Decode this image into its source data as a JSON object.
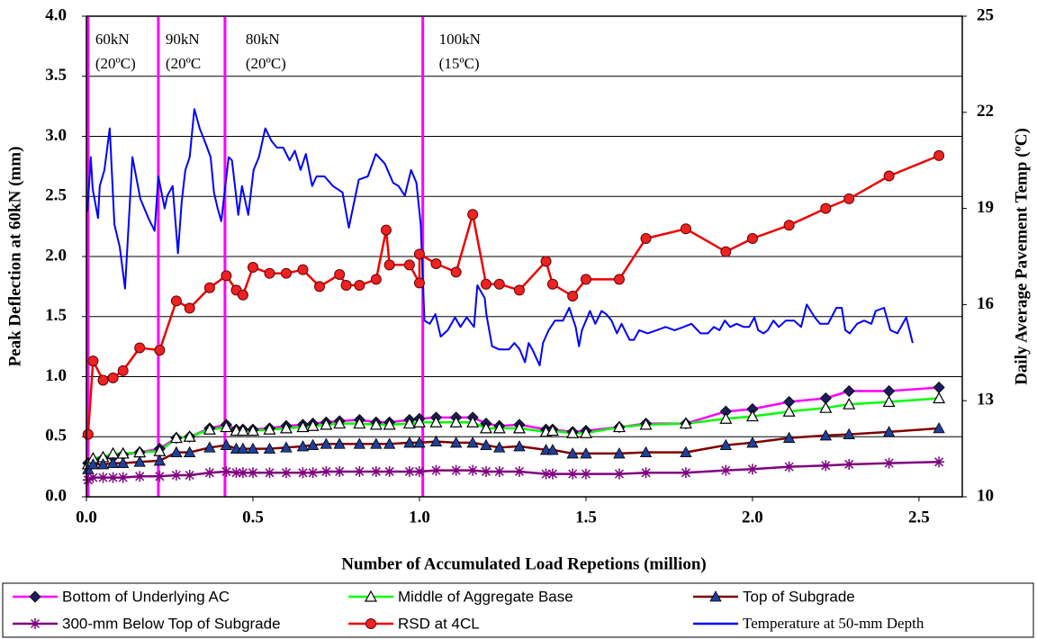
{
  "chart_data": {
    "type": "line",
    "x_label": "Number of Accumulated Load Repetions (million)",
    "y_label": "Peak Deflection at 60kN (mm)",
    "y2_label": "Daily Average Pavement Temp (ºC)",
    "xlim": [
      0,
      2.63
    ],
    "xticks": [
      {
        "value": 0,
        "label": "0.0"
      },
      {
        "value": 0.5,
        "label": "0.5"
      },
      {
        "value": 1,
        "label": "1.0"
      },
      {
        "value": 1.5,
        "label": "1.5"
      },
      {
        "value": 2,
        "label": "2.0"
      },
      {
        "value": 2.5,
        "label": "2.5"
      }
    ],
    "ylim": [
      0,
      4
    ],
    "yticks": [
      {
        "value": 0,
        "label": "0.0"
      },
      {
        "value": 0.5,
        "label": "0.5"
      },
      {
        "value": 1,
        "label": "1.0"
      },
      {
        "value": 1.5,
        "label": "1.5"
      },
      {
        "value": 2,
        "label": "2.0"
      },
      {
        "value": 2.5,
        "label": "2.5"
      },
      {
        "value": 3,
        "label": "3.0"
      },
      {
        "value": 3.5,
        "label": "3.5"
      },
      {
        "value": 4,
        "label": "4.0"
      }
    ],
    "y2lim": [
      10,
      25
    ],
    "y2ticks": [
      10,
      13,
      16,
      19,
      22,
      25
    ],
    "grid": true,
    "phases": [
      {
        "x": 0.005,
        "label": [
          "60kN",
          "(20ºC)"
        ]
      },
      {
        "x": 0.216,
        "label": [
          "90kN",
          "(20ºC"
        ]
      },
      {
        "x": 0.416,
        "label": [
          "80kN",
          "(20ºC)"
        ]
      },
      {
        "x": 1.01,
        "label": [
          "100kN",
          "(15ºC)"
        ]
      }
    ],
    "phase_color": "#ff00ff",
    "series": [
      {
        "name": "Bottom of Underlying AC",
        "color": "#ff00ff",
        "marker": "diamond",
        "marker_color": "#1c1c5e",
        "x": [
          0.005,
          0.02,
          0.05,
          0.08,
          0.11,
          0.16,
          0.22,
          0.27,
          0.31,
          0.37,
          0.42,
          0.45,
          0.47,
          0.5,
          0.55,
          0.6,
          0.65,
          0.68,
          0.72,
          0.76,
          0.82,
          0.87,
          0.91,
          0.97,
          1.0,
          1.05,
          1.11,
          1.16,
          1.2,
          1.24,
          1.3,
          1.38,
          1.4,
          1.46,
          1.5,
          1.6,
          1.68,
          1.8,
          1.92,
          2.0,
          2.11,
          2.22,
          2.29,
          2.41,
          2.56
        ],
        "values": [
          0.28,
          0.3,
          0.32,
          0.33,
          0.35,
          0.37,
          0.4,
          0.49,
          0.5,
          0.57,
          0.6,
          0.56,
          0.56,
          0.56,
          0.57,
          0.59,
          0.6,
          0.61,
          0.62,
          0.63,
          0.64,
          0.62,
          0.62,
          0.64,
          0.65,
          0.66,
          0.66,
          0.66,
          0.61,
          0.59,
          0.6,
          0.56,
          0.56,
          0.54,
          0.55,
          0.58,
          0.61,
          0.61,
          0.71,
          0.73,
          0.79,
          0.82,
          0.88,
          0.88,
          0.91
        ]
      },
      {
        "name": "Middle of Aggregate Base",
        "color": "#00ff00",
        "marker": "triangle-open",
        "marker_color": "#000000",
        "x": [
          0.005,
          0.02,
          0.05,
          0.08,
          0.11,
          0.16,
          0.22,
          0.27,
          0.31,
          0.37,
          0.42,
          0.45,
          0.47,
          0.5,
          0.55,
          0.6,
          0.65,
          0.68,
          0.72,
          0.76,
          0.82,
          0.87,
          0.91,
          0.97,
          1.0,
          1.05,
          1.11,
          1.16,
          1.2,
          1.24,
          1.3,
          1.38,
          1.4,
          1.46,
          1.5,
          1.6,
          1.68,
          1.8,
          1.92,
          2.0,
          2.11,
          2.22,
          2.29,
          2.41,
          2.56
        ],
        "values": [
          0.27,
          0.32,
          0.33,
          0.36,
          0.36,
          0.37,
          0.38,
          0.49,
          0.5,
          0.56,
          0.58,
          0.55,
          0.55,
          0.55,
          0.56,
          0.57,
          0.58,
          0.59,
          0.6,
          0.61,
          0.61,
          0.6,
          0.6,
          0.61,
          0.62,
          0.62,
          0.62,
          0.62,
          0.57,
          0.57,
          0.57,
          0.54,
          0.55,
          0.53,
          0.53,
          0.58,
          0.6,
          0.61,
          0.65,
          0.67,
          0.71,
          0.74,
          0.77,
          0.79,
          0.82
        ]
      },
      {
        "name": "Top of Subgrade",
        "color": "#800000",
        "marker": "triangle",
        "marker_color": "#1f3f99",
        "x": [
          0.005,
          0.02,
          0.05,
          0.08,
          0.11,
          0.16,
          0.22,
          0.27,
          0.31,
          0.37,
          0.42,
          0.45,
          0.47,
          0.5,
          0.55,
          0.6,
          0.65,
          0.68,
          0.72,
          0.76,
          0.82,
          0.87,
          0.91,
          0.97,
          1.0,
          1.05,
          1.11,
          1.16,
          1.2,
          1.24,
          1.3,
          1.38,
          1.4,
          1.46,
          1.5,
          1.6,
          1.68,
          1.8,
          1.92,
          2.0,
          2.11,
          2.22,
          2.29,
          2.41,
          2.56
        ],
        "values": [
          0.23,
          0.27,
          0.27,
          0.28,
          0.28,
          0.29,
          0.3,
          0.37,
          0.37,
          0.41,
          0.43,
          0.4,
          0.4,
          0.4,
          0.4,
          0.41,
          0.42,
          0.43,
          0.44,
          0.44,
          0.44,
          0.44,
          0.44,
          0.45,
          0.45,
          0.46,
          0.45,
          0.45,
          0.43,
          0.41,
          0.42,
          0.39,
          0.39,
          0.36,
          0.36,
          0.36,
          0.37,
          0.37,
          0.43,
          0.45,
          0.49,
          0.51,
          0.52,
          0.54,
          0.57
        ]
      },
      {
        "name": "300-mm Below Top of Subgrade",
        "color": "#800080",
        "marker": "star",
        "marker_color": "#800080",
        "x": [
          0.005,
          0.02,
          0.05,
          0.08,
          0.11,
          0.16,
          0.22,
          0.27,
          0.31,
          0.37,
          0.42,
          0.45,
          0.47,
          0.5,
          0.55,
          0.6,
          0.65,
          0.68,
          0.72,
          0.76,
          0.82,
          0.87,
          0.91,
          0.97,
          1.0,
          1.05,
          1.11,
          1.16,
          1.2,
          1.24,
          1.3,
          1.38,
          1.4,
          1.46,
          1.5,
          1.6,
          1.68,
          1.8,
          1.92,
          2.0,
          2.11,
          2.22,
          2.29,
          2.41,
          2.56
        ],
        "values": [
          0.14,
          0.16,
          0.16,
          0.16,
          0.16,
          0.17,
          0.17,
          0.18,
          0.18,
          0.2,
          0.21,
          0.2,
          0.2,
          0.2,
          0.2,
          0.2,
          0.2,
          0.2,
          0.21,
          0.21,
          0.21,
          0.21,
          0.21,
          0.21,
          0.21,
          0.22,
          0.22,
          0.22,
          0.21,
          0.21,
          0.21,
          0.19,
          0.19,
          0.19,
          0.19,
          0.19,
          0.2,
          0.2,
          0.22,
          0.23,
          0.25,
          0.26,
          0.27,
          0.28,
          0.29
        ]
      },
      {
        "name": "RSD at 4CL",
        "color": "#ee0000",
        "marker": "circle",
        "marker_color": "#ee2222",
        "x": [
          0.005,
          0.02,
          0.05,
          0.08,
          0.11,
          0.16,
          0.22,
          0.27,
          0.31,
          0.37,
          0.42,
          0.45,
          0.47,
          0.5,
          0.55,
          0.6,
          0.65,
          0.7,
          0.76,
          0.78,
          0.82,
          0.87,
          0.9,
          0.91,
          0.97,
          1.0,
          1.0,
          1.05,
          1.11,
          1.16,
          1.2,
          1.24,
          1.3,
          1.38,
          1.4,
          1.46,
          1.5,
          1.6,
          1.68,
          1.8,
          1.92,
          2.0,
          2.11,
          2.22,
          2.29,
          2.41,
          2.56
        ],
        "values": [
          0.52,
          1.13,
          0.97,
          0.99,
          1.05,
          1.24,
          1.22,
          1.63,
          1.57,
          1.74,
          1.84,
          1.72,
          1.68,
          1.91,
          1.86,
          1.86,
          1.89,
          1.75,
          1.85,
          1.76,
          1.76,
          1.81,
          2.22,
          1.93,
          1.93,
          1.78,
          2.02,
          1.94,
          1.87,
          2.35,
          1.77,
          1.77,
          1.72,
          1.96,
          1.77,
          1.67,
          1.81,
          1.81,
          2.15,
          2.23,
          2.04,
          2.15,
          2.26,
          2.4,
          2.48,
          2.67,
          2.84
        ]
      },
      {
        "name": "Temperature at 50-mm Depth",
        "color": "#0000ff",
        "marker": "none",
        "axis": "y2",
        "x": [
          0.003,
          0.013,
          0.019,
          0.035,
          0.04,
          0.054,
          0.07,
          0.084,
          0.1,
          0.116,
          0.138,
          0.162,
          0.186,
          0.205,
          0.216,
          0.235,
          0.243,
          0.259,
          0.275,
          0.286,
          0.297,
          0.31,
          0.324,
          0.34,
          0.359,
          0.373,
          0.383,
          0.394,
          0.405,
          0.427,
          0.437,
          0.456,
          0.467,
          0.486,
          0.502,
          0.518,
          0.537,
          0.556,
          0.572,
          0.591,
          0.61,
          0.626,
          0.643,
          0.659,
          0.678,
          0.691,
          0.715,
          0.74,
          0.769,
          0.788,
          0.818,
          0.845,
          0.869,
          0.896,
          0.921,
          0.937,
          0.956,
          0.975,
          0.991,
          1.004,
          1.015,
          1.031,
          1.048,
          1.064,
          1.085,
          1.107,
          1.123,
          1.142,
          1.164,
          1.174,
          1.196,
          1.201,
          1.218,
          1.239,
          1.269,
          1.285,
          1.301,
          1.317,
          1.328,
          1.339,
          1.361,
          1.371,
          1.388,
          1.407,
          1.431,
          1.45,
          1.469,
          1.479,
          1.488,
          1.512,
          1.528,
          1.547,
          1.561,
          1.577,
          1.593,
          1.607,
          1.631,
          1.644,
          1.66,
          1.685,
          1.712,
          1.739,
          1.766,
          1.793,
          1.817,
          1.844,
          1.866,
          1.884,
          1.901,
          1.917,
          1.933,
          1.952,
          1.974,
          1.99,
          2.006,
          2.017,
          2.033,
          2.046,
          2.063,
          2.079,
          2.1,
          2.125,
          2.146,
          2.163,
          2.187,
          2.203,
          2.227,
          2.252,
          2.268,
          2.279,
          2.292,
          2.314,
          2.335,
          2.357,
          2.37,
          2.395,
          2.414,
          2.435,
          2.462,
          2.481
        ],
        "values": [
          18.9,
          20.6,
          19.6,
          18.7,
          19.7,
          20.2,
          21.5,
          18.5,
          17.8,
          16.5,
          20.6,
          19.3,
          18.7,
          18.3,
          20.0,
          19.0,
          19.4,
          19.7,
          17.6,
          19.2,
          20.2,
          20.6,
          22.1,
          21.5,
          21.0,
          20.6,
          19.5,
          19.0,
          18.6,
          20.6,
          20.5,
          18.8,
          19.7,
          18.8,
          20.2,
          20.6,
          21.5,
          21.1,
          20.9,
          20.9,
          20.5,
          20.8,
          20.2,
          20.7,
          19.7,
          20.0,
          20.0,
          19.7,
          19.5,
          18.4,
          19.9,
          20.0,
          20.7,
          20.4,
          19.8,
          19.7,
          19.4,
          20.2,
          19.8,
          18.5,
          15.5,
          15.4,
          15.7,
          15.0,
          15.2,
          15.6,
          15.3,
          15.6,
          15.3,
          16.6,
          16.2,
          15.7,
          14.7,
          14.6,
          14.6,
          14.8,
          14.6,
          14.2,
          14.8,
          14.6,
          14.1,
          14.8,
          15.2,
          15.5,
          15.5,
          15.9,
          15.3,
          14.7,
          15.2,
          15.8,
          15.4,
          15.8,
          15.7,
          15.5,
          15.1,
          15.4,
          14.9,
          14.9,
          15.2,
          15.1,
          15.2,
          15.3,
          15.2,
          15.3,
          15.4,
          15.1,
          15.1,
          15.3,
          15.2,
          15.5,
          15.3,
          15.4,
          15.3,
          15.3,
          15.6,
          15.2,
          15.1,
          15.2,
          15.5,
          15.3,
          15.5,
          15.5,
          15.3,
          16.0,
          15.6,
          15.4,
          15.4,
          15.9,
          15.9,
          15.2,
          15.1,
          15.4,
          15.5,
          15.4,
          15.8,
          15.9,
          15.2,
          15.1,
          15.6,
          14.8
        ]
      }
    ]
  }
}
